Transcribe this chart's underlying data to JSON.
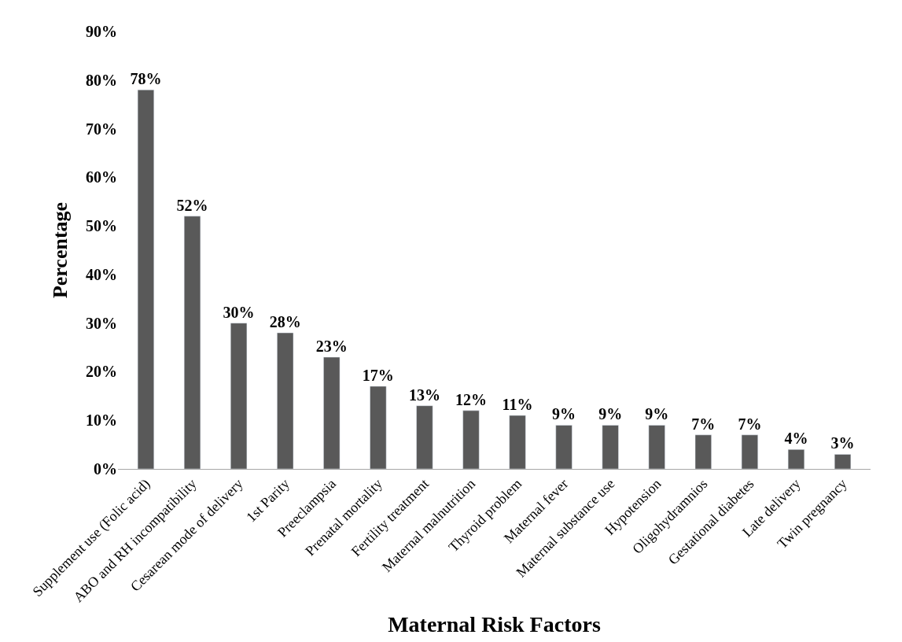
{
  "chart_data": {
    "type": "bar",
    "xlabel": "Maternal Risk Factors",
    "ylabel": "Percentage",
    "categories": [
      "Supplement use (Folic acid)",
      "ABO and RH incompatibility",
      "Cesarean mode of delivery",
      "1st Parity",
      "Preeclampsia",
      "Prenatal mortality",
      "Fertility treatment",
      "Maternal malnutrition",
      "Thyroid problem",
      "Maternal fever",
      "Maternal substance use",
      "Hypotension",
      "Oligohydramnios",
      "Gestational diabetes",
      "Late delivery",
      "Twin pregnancy"
    ],
    "values": [
      78,
      52,
      30,
      28,
      23,
      17,
      13,
      12,
      11,
      9,
      9,
      9,
      7,
      7,
      4,
      3
    ],
    "color": "#595959",
    "ylim": [
      0,
      90
    ],
    "yticks": [
      {
        "value": 0,
        "label": "0%"
      },
      {
        "value": 10,
        "label": "10%"
      },
      {
        "value": 20,
        "label": "20%"
      },
      {
        "value": 30,
        "label": "30%"
      },
      {
        "value": 40,
        "label": "40%"
      },
      {
        "value": 50,
        "label": "50%"
      },
      {
        "value": 60,
        "label": "60%"
      },
      {
        "value": 70,
        "label": "70%"
      },
      {
        "value": 80,
        "label": "80%"
      },
      {
        "value": 90,
        "label": "90%"
      }
    ],
    "value_labels": [
      "78%",
      "52%",
      "30%",
      "28%",
      "23%",
      "17%",
      "13%",
      "12%",
      "11%",
      "9%",
      "9%",
      "9%",
      "7%",
      "7%",
      "4%",
      "3%"
    ],
    "tick_labels": "xy"
  }
}
